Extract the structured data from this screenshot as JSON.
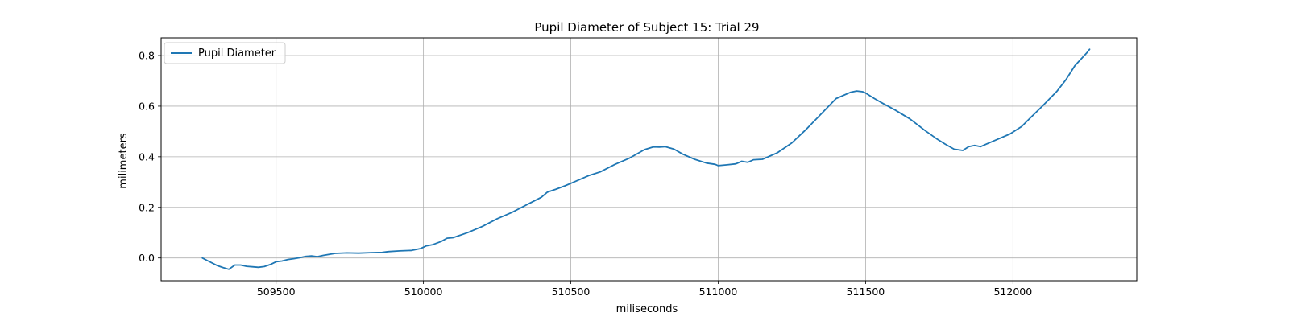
{
  "chart_data": {
    "type": "line",
    "title": "Pupil Diameter of Subject 15: Trial 29",
    "xlabel": "miliseconds",
    "ylabel": "milimeters",
    "xlim": [
      509110,
      512420
    ],
    "ylim": [
      -0.09,
      0.87
    ],
    "xticks": [
      509500,
      510000,
      510500,
      511000,
      511500,
      512000
    ],
    "yticks": [
      0.0,
      0.2,
      0.4,
      0.6,
      0.8
    ],
    "xtick_labels": [
      "509500",
      "510000",
      "510500",
      "511000",
      "511500",
      "512000"
    ],
    "ytick_labels": [
      "0.0",
      "0.2",
      "0.4",
      "0.6",
      "0.8"
    ],
    "grid": true,
    "legend": {
      "location": "upper-left",
      "entries": [
        "Pupil Diameter"
      ]
    },
    "series": [
      {
        "name": "Pupil Diameter",
        "color": "#1f77b4",
        "x": [
          509250,
          509270,
          509300,
          509320,
          509340,
          509360,
          509380,
          509400,
          509420,
          509440,
          509460,
          509480,
          509500,
          509520,
          509540,
          509560,
          509580,
          509600,
          509620,
          509640,
          509660,
          509700,
          509740,
          509780,
          509820,
          509860,
          509880,
          509920,
          509960,
          509990,
          510010,
          510030,
          510060,
          510080,
          510100,
          510150,
          510200,
          510250,
          510300,
          510350,
          510400,
          510420,
          510450,
          510480,
          510500,
          510530,
          510560,
          510600,
          510650,
          510700,
          510750,
          510780,
          510800,
          510820,
          510850,
          510880,
          510920,
          510960,
          510990,
          511000,
          511030,
          511060,
          511080,
          511100,
          511120,
          511150,
          511200,
          511250,
          511300,
          511350,
          511400,
          511450,
          511470,
          511490,
          511500,
          511530,
          511560,
          511600,
          511650,
          511700,
          511740,
          511770,
          511800,
          511830,
          511850,
          511870,
          511890,
          511910,
          511950,
          511990,
          512030,
          512060,
          512100,
          512150,
          512180,
          512210,
          512250,
          512260
        ],
        "y": [
          0.0,
          -0.012,
          -0.03,
          -0.038,
          -0.045,
          -0.028,
          -0.028,
          -0.033,
          -0.035,
          -0.037,
          -0.034,
          -0.026,
          -0.015,
          -0.012,
          -0.006,
          -0.003,
          0.001,
          0.006,
          0.008,
          0.005,
          0.01,
          0.018,
          0.02,
          0.019,
          0.021,
          0.022,
          0.025,
          0.028,
          0.03,
          0.037,
          0.048,
          0.052,
          0.065,
          0.078,
          0.08,
          0.1,
          0.125,
          0.155,
          0.18,
          0.21,
          0.24,
          0.26,
          0.272,
          0.285,
          0.295,
          0.31,
          0.325,
          0.34,
          0.37,
          0.395,
          0.428,
          0.439,
          0.438,
          0.44,
          0.43,
          0.41,
          0.39,
          0.375,
          0.37,
          0.365,
          0.368,
          0.372,
          0.382,
          0.378,
          0.388,
          0.39,
          0.415,
          0.455,
          0.51,
          0.57,
          0.63,
          0.655,
          0.66,
          0.657,
          0.652,
          0.63,
          0.61,
          0.585,
          0.55,
          0.505,
          0.472,
          0.45,
          0.43,
          0.425,
          0.44,
          0.445,
          0.44,
          0.45,
          0.47,
          0.49,
          0.52,
          0.555,
          0.6,
          0.66,
          0.705,
          0.76,
          0.81,
          0.825
        ]
      }
    ]
  }
}
